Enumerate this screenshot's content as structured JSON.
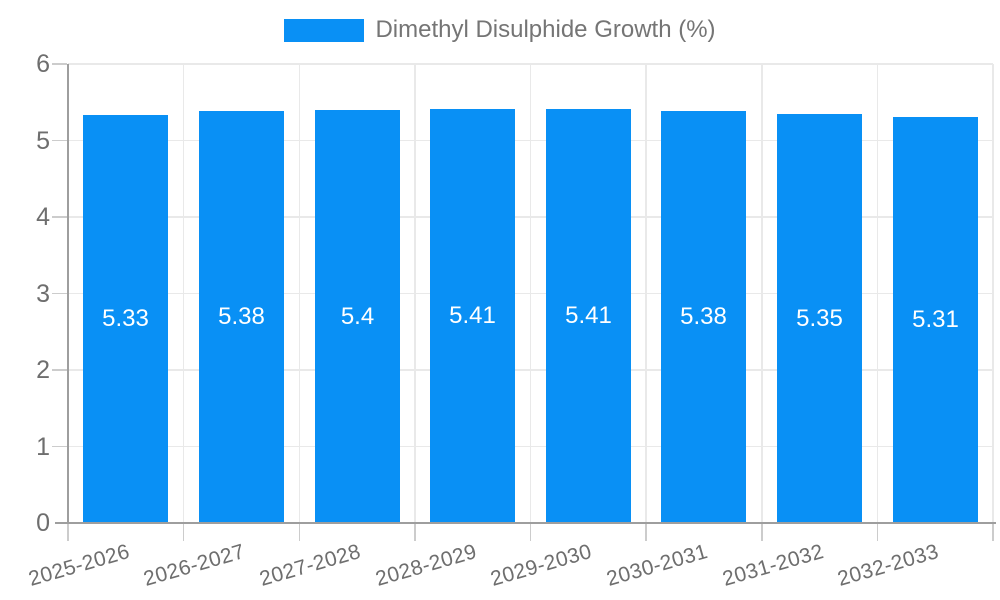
{
  "legend": {
    "label": "Dimethyl Disulphide Growth (%)"
  },
  "chart_data": {
    "type": "bar",
    "title": "",
    "xlabel": "",
    "ylabel": "",
    "categories": [
      "2025-2026",
      "2026-2027",
      "2027-2028",
      "2028-2029",
      "2029-2030",
      "2030-2031",
      "2031-2032",
      "2032-2033"
    ],
    "series": [
      {
        "name": "Dimethyl Disulphide Growth (%)",
        "values": [
          5.33,
          5.38,
          5.4,
          5.41,
          5.41,
          5.38,
          5.35,
          5.31
        ]
      }
    ],
    "ylim": [
      0,
      6
    ],
    "y_ticks": [
      0,
      1,
      2,
      3,
      4,
      5,
      6
    ],
    "grid": true,
    "legend_position": "top",
    "bar_color": "#0990f5",
    "value_label_color": "#ffffff",
    "legend_text_color": "#757575",
    "axis_text_color": "#6e6e6e",
    "gridline_color": "#e9e9e9",
    "tick_color": "#cccccc",
    "axis_line_color": "#9e9e9e"
  }
}
